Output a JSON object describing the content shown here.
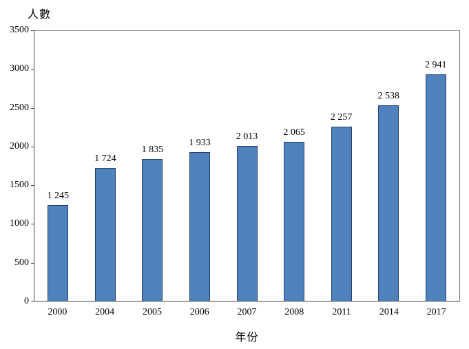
{
  "chart_data": {
    "type": "bar",
    "title": "",
    "ylabel": "人數",
    "xlabel": "年份",
    "categories": [
      "2000",
      "2004",
      "2005",
      "2006",
      "2007",
      "2008",
      "2011",
      "2014",
      "2017"
    ],
    "values": [
      1245,
      1724,
      1835,
      1933,
      2013,
      2065,
      2257,
      2538,
      2941
    ],
    "value_labels": [
      "1 245",
      "1 724",
      "1 835",
      "1 933",
      "2 013",
      "2 065",
      "2 257",
      "2 538",
      "2 941"
    ],
    "ylim": [
      0,
      3500
    ],
    "yticks": [
      0,
      500,
      1000,
      1500,
      2000,
      2500,
      3000,
      3500
    ],
    "grid": false,
    "legend": "none",
    "bar_fill": "#4f81bd",
    "bar_border": "#24406b",
    "axis_color": "#404040",
    "plot_border_color": "#8c8c8c",
    "background": "#ffffff"
  }
}
